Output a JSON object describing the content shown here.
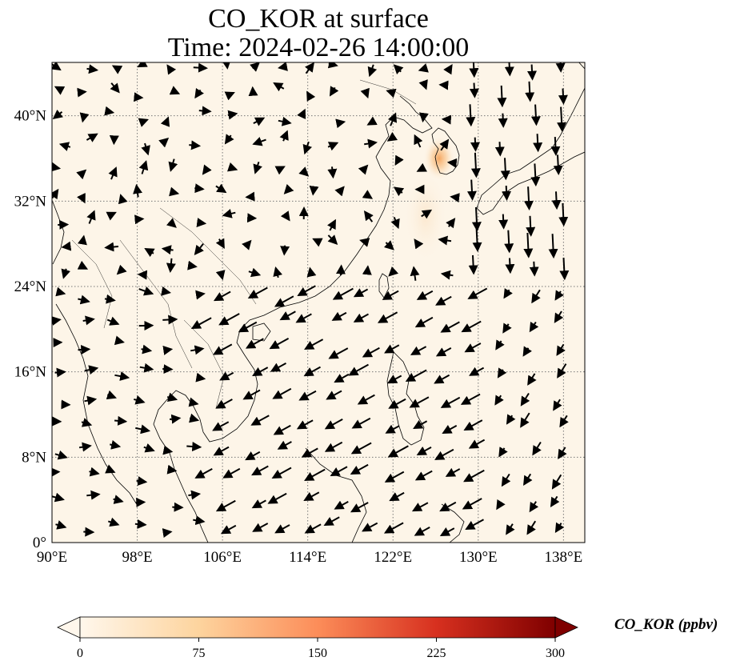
{
  "title": {
    "line1": "CO_KOR at surface",
    "line2": "Time: 2024-02-26 14:00:00"
  },
  "map": {
    "projection": "PlateCarree",
    "lon_range": [
      90,
      140
    ],
    "lat_range": [
      0,
      45
    ],
    "background_color": "#fdf5e8",
    "gridlines": "dotted",
    "lon_ticks": [
      {
        "value": 90,
        "label": "90°E"
      },
      {
        "value": 98,
        "label": "98°E"
      },
      {
        "value": 106,
        "label": "106°E"
      },
      {
        "value": 114,
        "label": "114°E"
      },
      {
        "value": 122,
        "label": "122°E"
      },
      {
        "value": 130,
        "label": "130°E"
      },
      {
        "value": 138,
        "label": "138°E"
      }
    ],
    "lat_ticks": [
      {
        "value": 0,
        "label": "0°"
      },
      {
        "value": 8,
        "label": "8°N"
      },
      {
        "value": 16,
        "label": "16°N"
      },
      {
        "value": 24,
        "label": "24°N"
      },
      {
        "value": 32,
        "label": "32°N"
      },
      {
        "value": 40,
        "label": "40°N"
      }
    ],
    "plume_color": "#f7b06a",
    "plume_center": {
      "lon": 126.8,
      "lat": 36.5
    }
  },
  "colorbar": {
    "label": "CO_KOR (ppbv)",
    "min": 0,
    "max": 300,
    "extend": "both",
    "colormap": "OrRd",
    "colors": [
      "#fff7ec",
      "#fdd49e",
      "#fc8d59",
      "#d7301f",
      "#7f0000"
    ],
    "ticks": [
      {
        "value": 0,
        "label": "0"
      },
      {
        "value": 75,
        "label": "75"
      },
      {
        "value": 150,
        "label": "150"
      },
      {
        "value": 225,
        "label": "225"
      },
      {
        "value": 300,
        "label": "300"
      }
    ]
  }
}
